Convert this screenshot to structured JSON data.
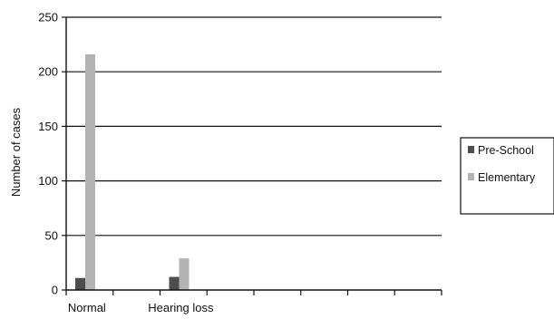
{
  "chart_data": {
    "type": "bar",
    "categories": [
      "Normal",
      "",
      "Hearing loss",
      "",
      "",
      "",
      "",
      ""
    ],
    "series": [
      {
        "name": "Pre-School",
        "color": "#4d4d4d",
        "values": [
          11,
          null,
          12,
          null,
          null,
          null,
          null,
          null
        ]
      },
      {
        "name": "Elementary",
        "color": "#b3b3b3",
        "values": [
          216,
          null,
          29,
          null,
          null,
          null,
          null,
          null
        ]
      }
    ],
    "title": "",
    "xlabel": "",
    "ylabel": "Number of cases",
    "ylim": [
      0,
      250
    ],
    "yticks": [
      0,
      50,
      100,
      150,
      200,
      250
    ],
    "grid": true,
    "legend_position": "right"
  }
}
